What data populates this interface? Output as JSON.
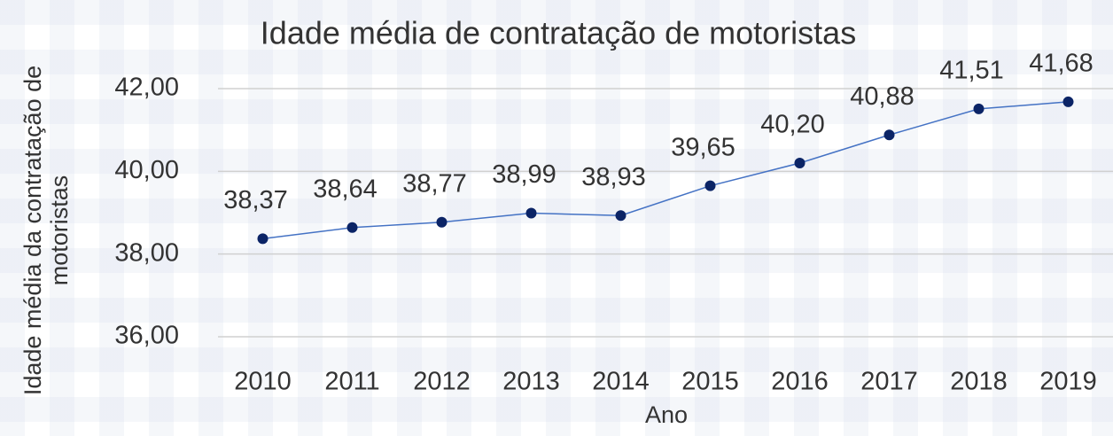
{
  "chart_data": {
    "type": "line",
    "title": "Idade média de contratação de motoristas",
    "xlabel": "Ano",
    "ylabel": "Idade média da contratação de motoristas",
    "categories": [
      "2010",
      "2011",
      "2012",
      "2013",
      "2014",
      "2015",
      "2016",
      "2017",
      "2018",
      "2019"
    ],
    "values": [
      38.37,
      38.64,
      38.77,
      38.99,
      38.93,
      39.65,
      40.2,
      40.88,
      41.51,
      41.68
    ],
    "value_labels": [
      "38,37",
      "38,64",
      "38,77",
      "38,99",
      "38,93",
      "39,65",
      "40,20",
      "40,88",
      "41,51",
      "41,68"
    ],
    "color": "#4472c4",
    "marker_color": "#0b2466",
    "ylim": [
      36,
      42
    ],
    "yticks": [
      {
        "value": 36,
        "label": "36,00"
      },
      {
        "value": 38,
        "label": "38,00"
      },
      {
        "value": 40,
        "label": "40,00"
      },
      {
        "value": 42,
        "label": "42,00"
      }
    ],
    "grid": true
  }
}
